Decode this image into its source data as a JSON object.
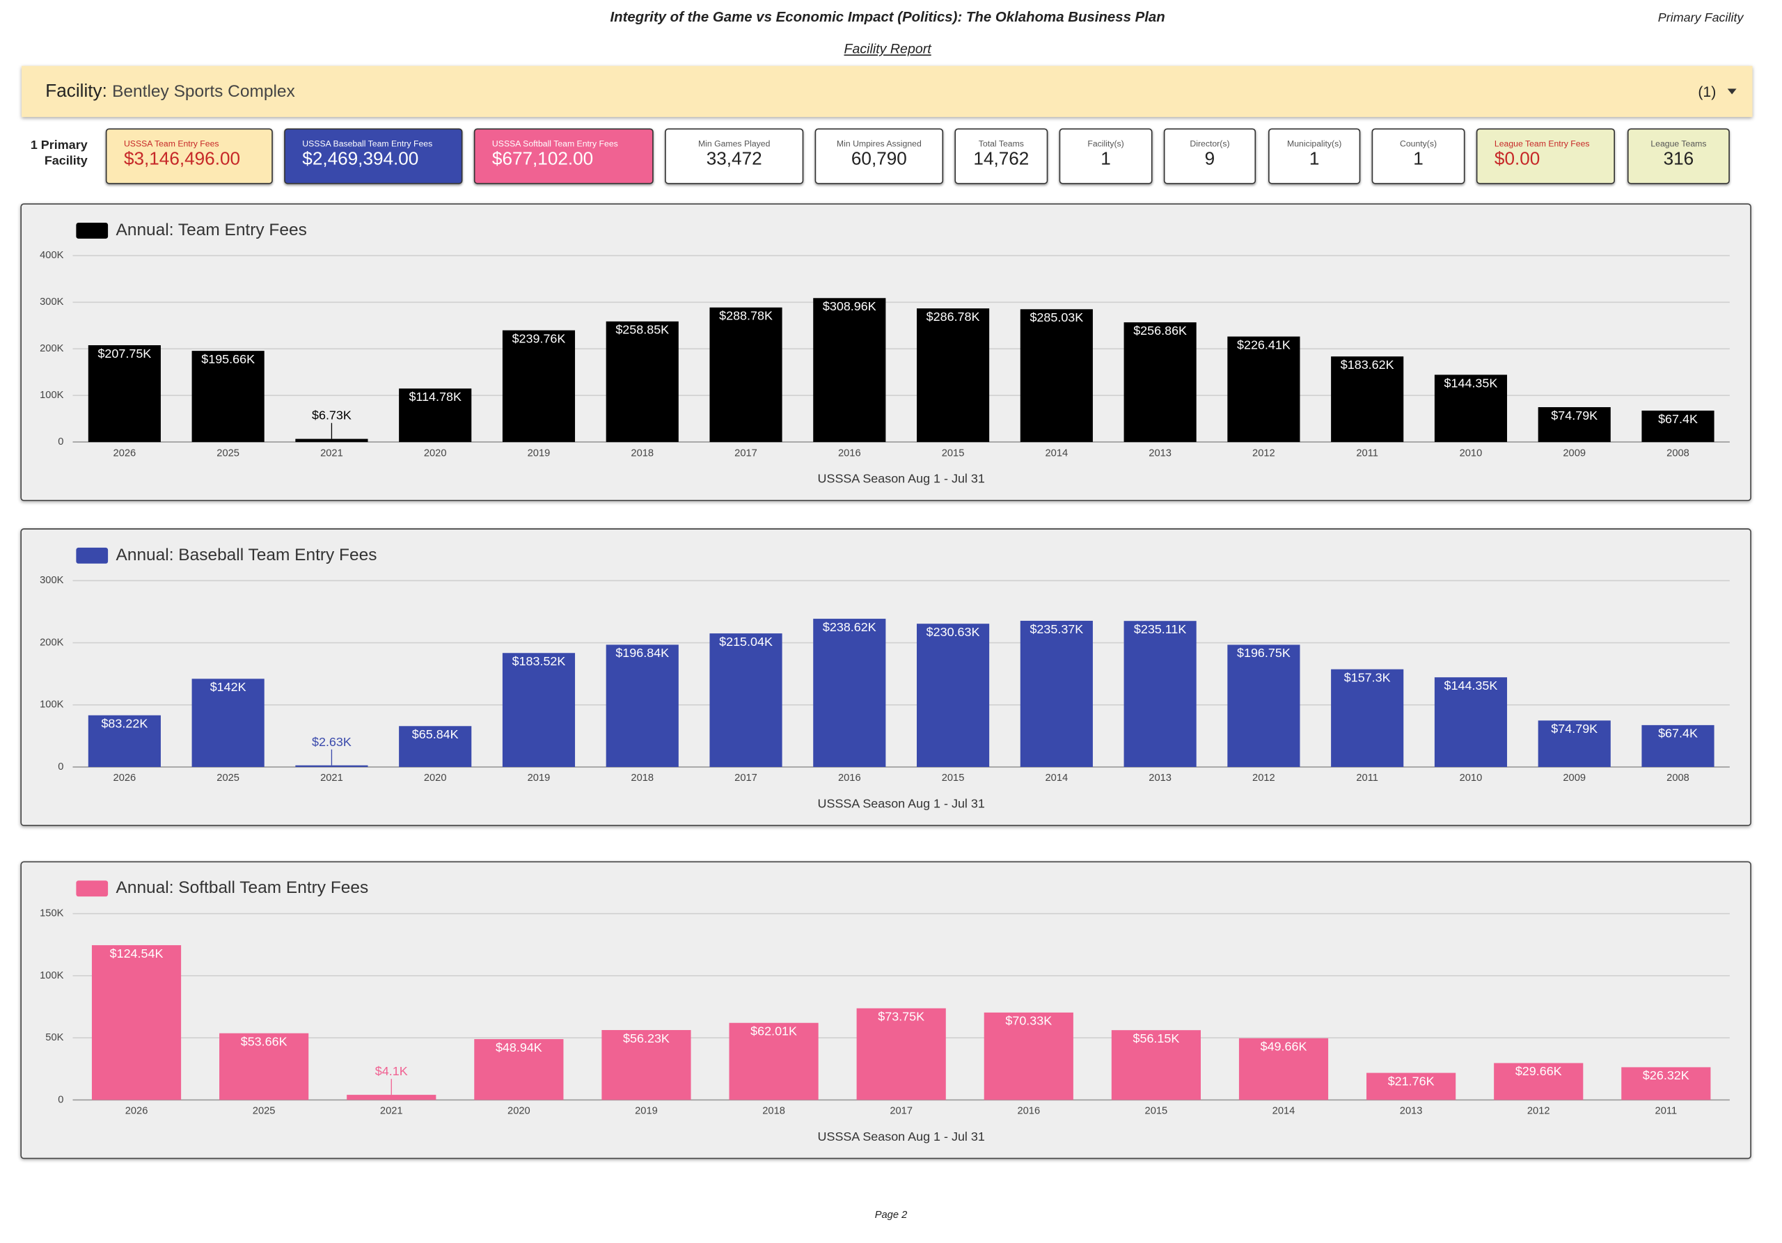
{
  "header": {
    "title": "Integrity of the Game vs Economic Impact (Politics): The Oklahoma Business Plan",
    "right": "Primary Facility",
    "subtitle": "Facility Report"
  },
  "facility": {
    "label": "Facility",
    "name": "Bentley Sports Complex",
    "count": "(1)"
  },
  "side_label": "1 Primary Facility",
  "kpis": [
    {
      "label": "USSSA Team Entry Fees",
      "value": "$3,146,496.00"
    },
    {
      "label": "USSSA Baseball Team Entry Fees",
      "value": "$2,469,394.00"
    },
    {
      "label": "USSSA Softball Team Entry Fees",
      "value": "$677,102.00"
    },
    {
      "label": "Min Games Played",
      "value": "33,472"
    },
    {
      "label": "Min Umpires Assigned",
      "value": "60,790"
    },
    {
      "label": "Total Teams",
      "value": "14,762"
    },
    {
      "label": "Facility(s)",
      "value": "1"
    },
    {
      "label": "Director(s)",
      "value": "9"
    },
    {
      "label": "Municipality(s)",
      "value": "1"
    },
    {
      "label": "County(s)",
      "value": "1"
    },
    {
      "label": "League Team Entry Fees",
      "value": "$0.00"
    },
    {
      "label": "League Teams",
      "value": "316"
    }
  ],
  "chart_data": [
    {
      "type": "bar",
      "x_label": "USSSA Season Aug 1 - Jul 31",
      "grid": true,
      "categories": [
        "2026",
        "2025",
        "2021",
        "2020",
        "2019",
        "2018",
        "2017",
        "2016",
        "2015",
        "2014",
        "2013",
        "2012",
        "2011",
        "2010",
        "2009",
        "2008"
      ],
      "series": [
        {
          "name": "Annual: Team Entry Fees",
          "color": "#000000",
          "values": [
            207750,
            195660,
            6730,
            114780,
            239760,
            258850,
            288780,
            308960,
            286780,
            285030,
            256860,
            226410,
            183620,
            144350,
            74790,
            67400
          ],
          "value_labels": [
            "$207.75K",
            "$195.66K",
            "$6.73K",
            "$114.78K",
            "$239.76K",
            "$258.85K",
            "$288.78K",
            "$308.96K",
            "$286.78K",
            "$285.03K",
            "$256.86K",
            "$226.41K",
            "$183.62K",
            "$144.35K",
            "$74.79K",
            "$67.4K"
          ]
        }
      ],
      "ylim": [
        0,
        400000
      ],
      "yticks": [
        0,
        {
          "value": 100000,
          "label": "100K"
        },
        {
          "value": 200000,
          "label": "200K"
        },
        {
          "value": 300000,
          "label": "300K"
        },
        {
          "value": 400000,
          "label": "400K"
        }
      ]
    },
    {
      "type": "bar",
      "x_label": "USSSA Season Aug 1 - Jul 31",
      "grid": true,
      "categories": [
        "2026",
        "2025",
        "2021",
        "2020",
        "2019",
        "2018",
        "2017",
        "2016",
        "2015",
        "2014",
        "2013",
        "2012",
        "2011",
        "2010",
        "2009",
        "2008"
      ],
      "series": [
        {
          "name": "Annual: Baseball Team Entry Fees",
          "color": "#3949ab",
          "values": [
            83220,
            142000,
            2630,
            65840,
            183520,
            196840,
            215040,
            238620,
            230630,
            235370,
            235110,
            196750,
            157300,
            144350,
            74790,
            67400
          ],
          "value_labels": [
            "$83.22K",
            "$142K",
            "$2.63K",
            "$65.84K",
            "$183.52K",
            "$196.84K",
            "$215.04K",
            "$238.62K",
            "$230.63K",
            "$235.37K",
            "$235.11K",
            "$196.75K",
            "$157.3K",
            "$144.35K",
            "$74.79K",
            "$67.4K"
          ]
        }
      ],
      "ylim": [
        0,
        300000
      ],
      "yticks": [
        0,
        {
          "value": 100000,
          "label": "100K"
        },
        {
          "value": 200000,
          "label": "200K"
        },
        {
          "value": 300000,
          "label": "300K"
        }
      ]
    },
    {
      "type": "bar",
      "x_label": "USSSA Season Aug 1 - Jul 31",
      "grid": true,
      "categories": [
        "2026",
        "2025",
        "2021",
        "2020",
        "2019",
        "2018",
        "2017",
        "2016",
        "2015",
        "2014",
        "2013",
        "2012",
        "2011"
      ],
      "series": [
        {
          "name": "Annual: Softball Team Entry Fees",
          "color": "#f06292",
          "values": [
            124540,
            53660,
            4100,
            48940,
            56230,
            62010,
            73750,
            70330,
            56150,
            49660,
            21760,
            29660,
            26320
          ],
          "value_labels": [
            "$124.54K",
            "$53.66K",
            "$4.1K",
            "$48.94K",
            "$56.23K",
            "$62.01K",
            "$73.75K",
            "$70.33K",
            "$56.15K",
            "$49.66K",
            "$21.76K",
            "$29.66K",
            "$26.32K"
          ]
        }
      ],
      "ylim": [
        0,
        150000
      ],
      "yticks": [
        0,
        {
          "value": 50000,
          "label": "50K"
        },
        {
          "value": 100000,
          "label": "100K"
        },
        {
          "value": 150000,
          "label": "150K"
        }
      ]
    }
  ],
  "footer": "Page 2"
}
